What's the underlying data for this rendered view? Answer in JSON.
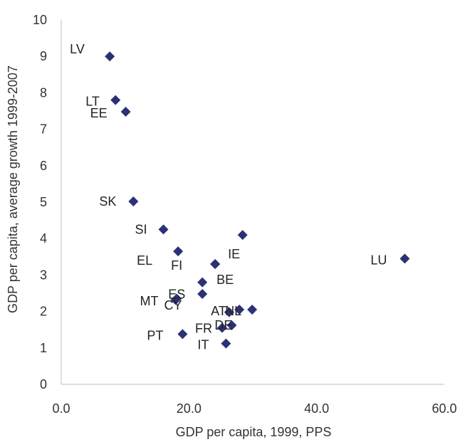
{
  "chart_data": {
    "type": "scatter",
    "title": "",
    "xlabel": "GDP per capita, 1999, PPS",
    "ylabel": "GDP per capita, average growth 1999-2007",
    "xlim": [
      0,
      60
    ],
    "ylim": [
      0,
      10
    ],
    "xticks": [
      "0.0",
      "20.0",
      "40.0",
      "60.0"
    ],
    "yticks": [
      "0",
      "1",
      "2",
      "3",
      "4",
      "5",
      "6",
      "7",
      "8",
      "9",
      "10"
    ],
    "grid": false,
    "marker": "diamond",
    "marker_color": "#2b3172",
    "points": [
      {
        "label": "LV",
        "x": 7.6,
        "y": 9.0
      },
      {
        "label": "LT",
        "x": 8.5,
        "y": 7.8
      },
      {
        "label": "EE",
        "x": 10.1,
        "y": 7.48
      },
      {
        "label": "SK",
        "x": 11.3,
        "y": 5.02
      },
      {
        "label": "SI",
        "x": 16.0,
        "y": 4.25
      },
      {
        "label": "",
        "x": 28.4,
        "y": 4.1
      },
      {
        "label": "EL",
        "x": 18.3,
        "y": 3.65
      },
      {
        "label": "FI",
        "x": 24.1,
        "y": 3.3
      },
      {
        "label": "IE",
        "x": 24.1,
        "y": 3.3
      },
      {
        "label": "LU",
        "x": 53.8,
        "y": 3.45
      },
      {
        "label": "",
        "x": 22.1,
        "y": 2.8
      },
      {
        "label": "BE",
        "x": 22.1,
        "y": 2.48
      },
      {
        "label": "ES",
        "x": 18.1,
        "y": 2.35
      },
      {
        "label": "MT",
        "x": 17.9,
        "y": 2.32
      },
      {
        "label": "CY",
        "x": 17.9,
        "y": 2.32
      },
      {
        "label": "AT",
        "x": 27.9,
        "y": 2.05
      },
      {
        "label": "NL",
        "x": 29.9,
        "y": 2.05
      },
      {
        "label": "",
        "x": 26.3,
        "y": 1.98
      },
      {
        "label": "DE",
        "x": 26.7,
        "y": 1.62
      },
      {
        "label": "FR",
        "x": 25.2,
        "y": 1.55
      },
      {
        "label": "PT",
        "x": 19.0,
        "y": 1.38
      },
      {
        "label": "IT",
        "x": 25.8,
        "y": 1.12
      }
    ]
  }
}
